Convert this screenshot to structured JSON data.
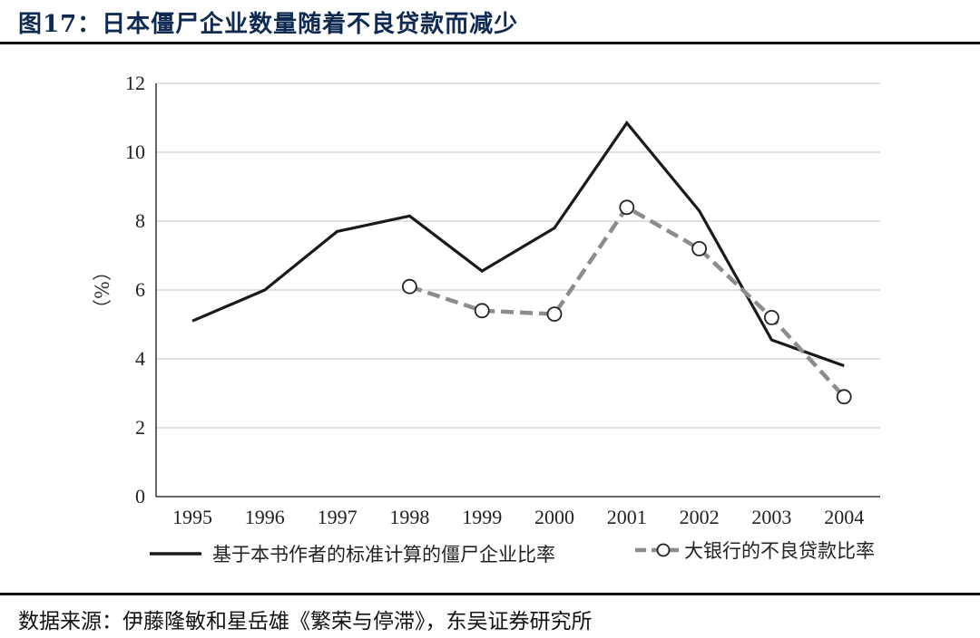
{
  "title": "图17：日本僵尸企业数量随着不良贷款而减少",
  "source": "数据来源：伊藤隆敏和星岳雄《繁荣与停滞》，东吴证券研究所",
  "colors": {
    "title": "#0e2a52",
    "series1": "#1a1a1a",
    "series2": "#8c8c8c",
    "grid": "#cfcfcf"
  },
  "chart_data": {
    "type": "line",
    "categories": [
      "1995",
      "1996",
      "1997",
      "1998",
      "1999",
      "2000",
      "2001",
      "2002",
      "2003",
      "2004"
    ],
    "ylabel": "（%）",
    "ylim": [
      0,
      12
    ],
    "yticks": [
      "0",
      "2",
      "4",
      "6",
      "8",
      "10",
      "12"
    ],
    "grid": true,
    "legend_position": "bottom",
    "series": [
      {
        "name": "基于本书作者的标准计算的僵尸企业比率",
        "style": "solid",
        "values": [
          5.1,
          6.0,
          7.7,
          8.15,
          6.55,
          7.8,
          10.85,
          8.3,
          4.55,
          3.8
        ]
      },
      {
        "name": "大银行的不良贷款比率",
        "style": "dashed-with-circles",
        "values": [
          null,
          null,
          null,
          6.1,
          5.4,
          5.3,
          8.4,
          7.2,
          5.2,
          2.9
        ]
      }
    ]
  }
}
